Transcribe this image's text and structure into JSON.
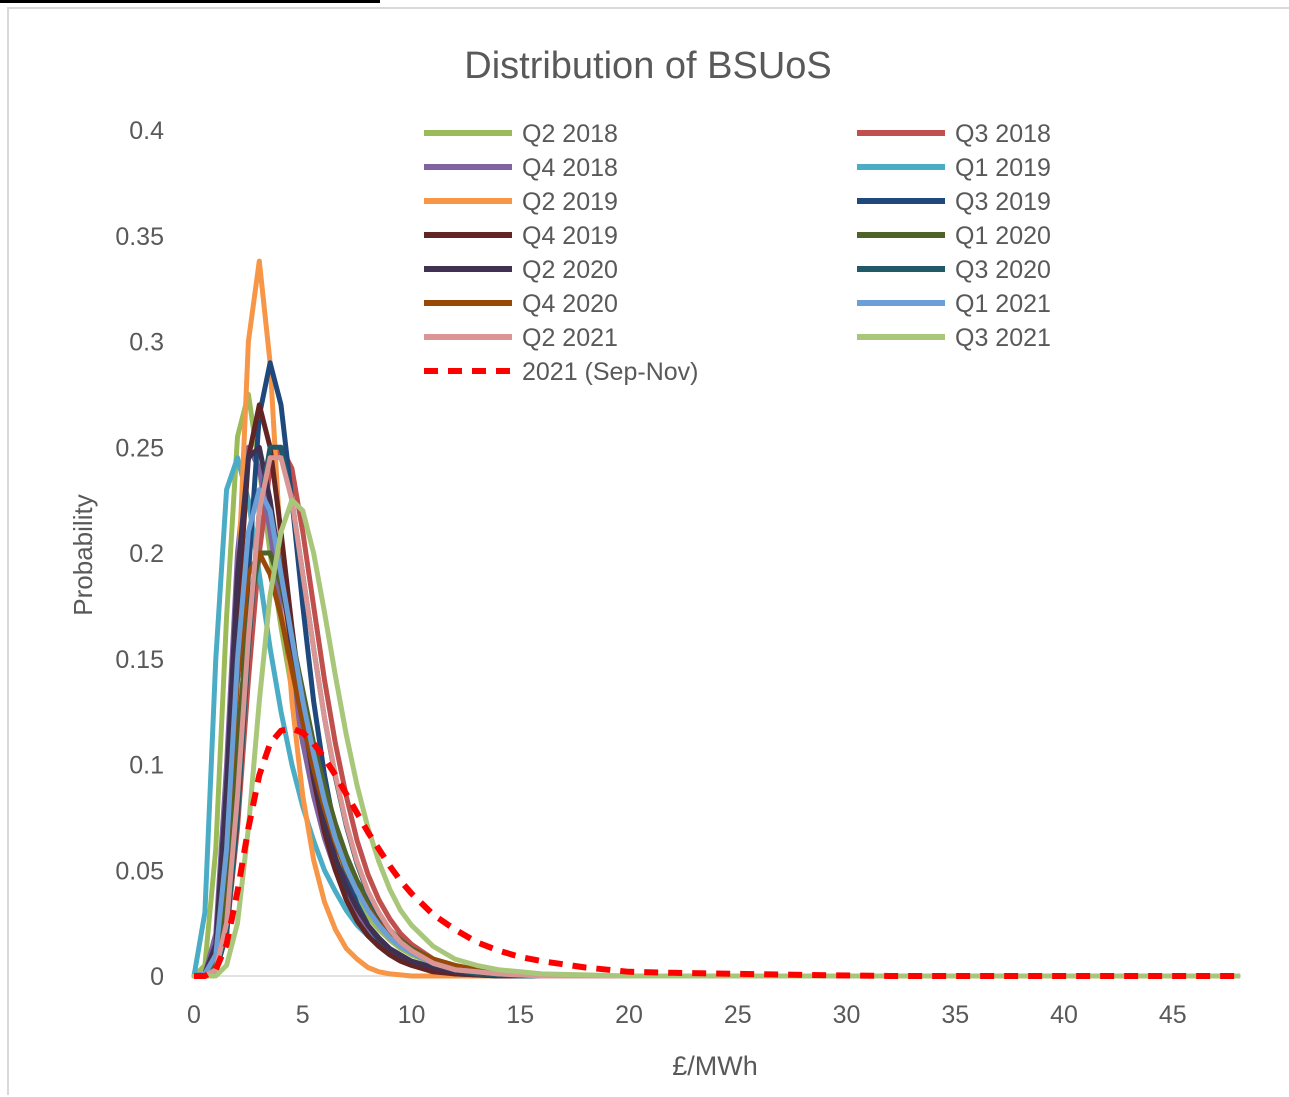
{
  "chart_data": {
    "type": "line",
    "title": "Distribution of BSUoS",
    "xlabel": "£/MWh",
    "ylabel": "Probability",
    "xlim": [
      0,
      48
    ],
    "ylim": [
      0,
      0.4
    ],
    "x_ticks": [
      0,
      5,
      10,
      15,
      20,
      25,
      30,
      35,
      40,
      45
    ],
    "y_ticks": [
      0,
      0.05,
      0.1,
      0.15,
      0.2,
      0.25,
      0.3,
      0.35,
      0.4
    ],
    "y_tick_labels": [
      "0",
      "0.05",
      "0.1",
      "0.15",
      "0.2",
      "0.25",
      "0.3",
      "0.35",
      "0.4"
    ],
    "x_tick_labels": [
      "0",
      "5",
      "10",
      "15",
      "20",
      "25",
      "30",
      "35",
      "40",
      "45"
    ],
    "grid": false,
    "legend_position": "top-right",
    "x": [
      0,
      0.5,
      1,
      1.5,
      2,
      2.5,
      3,
      3.5,
      4,
      4.5,
      5,
      5.5,
      6,
      6.5,
      7,
      7.5,
      8,
      8.5,
      9,
      9.5,
      10,
      11,
      12,
      13,
      14,
      15,
      16,
      18,
      20,
      22,
      25,
      28,
      32,
      36,
      40,
      44,
      48
    ],
    "series": [
      {
        "name": "Q2 2018",
        "color": "#9bbb59",
        "dashed": false,
        "values": [
          0,
          0.005,
          0.06,
          0.17,
          0.255,
          0.275,
          0.24,
          0.2,
          0.165,
          0.135,
          0.11,
          0.09,
          0.072,
          0.058,
          0.046,
          0.036,
          0.028,
          0.022,
          0.017,
          0.013,
          0.01,
          0.006,
          0.003,
          0.002,
          0.001,
          0.0005,
          0,
          0,
          0,
          0,
          0,
          0,
          0,
          0,
          0,
          0,
          0
        ]
      },
      {
        "name": "Q3 2018",
        "color": "#c0504d",
        "dashed": false,
        "values": [
          0,
          0,
          0.003,
          0.02,
          0.07,
          0.14,
          0.2,
          0.24,
          0.25,
          0.24,
          0.21,
          0.175,
          0.14,
          0.11,
          0.085,
          0.064,
          0.048,
          0.036,
          0.027,
          0.02,
          0.015,
          0.008,
          0.004,
          0.002,
          0.001,
          0.0005,
          0,
          0,
          0,
          0,
          0,
          0,
          0,
          0,
          0,
          0,
          0
        ]
      },
      {
        "name": "Q4 2018",
        "color": "#8064a2",
        "dashed": false,
        "values": [
          0,
          0.001,
          0.02,
          0.1,
          0.2,
          0.25,
          0.24,
          0.21,
          0.175,
          0.14,
          0.11,
          0.085,
          0.065,
          0.05,
          0.038,
          0.028,
          0.021,
          0.016,
          0.012,
          0.009,
          0.007,
          0.004,
          0.002,
          0.001,
          0.0005,
          0,
          0,
          0,
          0,
          0,
          0,
          0,
          0,
          0,
          0,
          0,
          0
        ]
      },
      {
        "name": "Q1 2019",
        "color": "#4bacc6",
        "dashed": false,
        "values": [
          0,
          0.03,
          0.15,
          0.23,
          0.245,
          0.225,
          0.19,
          0.155,
          0.125,
          0.1,
          0.08,
          0.064,
          0.05,
          0.04,
          0.031,
          0.024,
          0.019,
          0.015,
          0.011,
          0.009,
          0.007,
          0.004,
          0.002,
          0.001,
          0.0005,
          0,
          0,
          0,
          0,
          0,
          0,
          0,
          0,
          0,
          0,
          0,
          0
        ]
      },
      {
        "name": "Q2 2019",
        "color": "#f79646",
        "dashed": false,
        "values": [
          0,
          0,
          0.005,
          0.05,
          0.18,
          0.3,
          0.338,
          0.29,
          0.2,
          0.13,
          0.085,
          0.055,
          0.035,
          0.022,
          0.013,
          0.008,
          0.004,
          0.002,
          0.001,
          0.0005,
          0,
          0,
          0,
          0,
          0,
          0,
          0,
          0,
          0,
          0,
          0,
          0,
          0,
          0,
          0,
          0,
          0
        ]
      },
      {
        "name": "Q3 2019",
        "color": "#1f497d",
        "dashed": false,
        "values": [
          0,
          0,
          0.002,
          0.02,
          0.09,
          0.19,
          0.265,
          0.29,
          0.27,
          0.225,
          0.175,
          0.13,
          0.095,
          0.068,
          0.048,
          0.034,
          0.024,
          0.017,
          0.012,
          0.008,
          0.006,
          0.003,
          0.001,
          0.0005,
          0,
          0,
          0,
          0,
          0,
          0,
          0,
          0,
          0,
          0,
          0,
          0,
          0
        ]
      },
      {
        "name": "Q4 2019",
        "color": "#632523",
        "dashed": false,
        "values": [
          0,
          0.001,
          0.01,
          0.07,
          0.17,
          0.245,
          0.27,
          0.25,
          0.21,
          0.165,
          0.125,
          0.093,
          0.068,
          0.05,
          0.036,
          0.026,
          0.019,
          0.014,
          0.01,
          0.007,
          0.005,
          0.002,
          0.001,
          0.0005,
          0,
          0,
          0,
          0,
          0,
          0,
          0,
          0,
          0,
          0,
          0,
          0,
          0
        ]
      },
      {
        "name": "Q1 2020",
        "color": "#4f6228",
        "dashed": false,
        "values": [
          0,
          0,
          0.005,
          0.04,
          0.11,
          0.17,
          0.2,
          0.2,
          0.185,
          0.16,
          0.135,
          0.11,
          0.09,
          0.072,
          0.057,
          0.045,
          0.036,
          0.028,
          0.022,
          0.017,
          0.013,
          0.008,
          0.005,
          0.003,
          0.002,
          0.001,
          0.0005,
          0,
          0,
          0,
          0,
          0,
          0,
          0,
          0,
          0,
          0
        ]
      },
      {
        "name": "Q2 2020",
        "color": "#403152",
        "dashed": false,
        "values": [
          0,
          0.001,
          0.015,
          0.09,
          0.19,
          0.245,
          0.25,
          0.225,
          0.19,
          0.155,
          0.122,
          0.095,
          0.073,
          0.056,
          0.042,
          0.032,
          0.024,
          0.018,
          0.013,
          0.01,
          0.007,
          0.004,
          0.002,
          0.001,
          0.0005,
          0,
          0,
          0,
          0,
          0,
          0,
          0,
          0,
          0,
          0,
          0,
          0
        ]
      },
      {
        "name": "Q3 2020",
        "color": "#215968",
        "dashed": false,
        "values": [
          0,
          0,
          0.002,
          0.02,
          0.075,
          0.155,
          0.22,
          0.25,
          0.25,
          0.225,
          0.19,
          0.155,
          0.122,
          0.094,
          0.071,
          0.053,
          0.039,
          0.029,
          0.021,
          0.015,
          0.011,
          0.006,
          0.003,
          0.001,
          0.0005,
          0,
          0,
          0,
          0,
          0,
          0,
          0,
          0,
          0,
          0,
          0,
          0
        ]
      },
      {
        "name": "Q4 2020",
        "color": "#984807",
        "dashed": false,
        "values": [
          0,
          0.001,
          0.01,
          0.06,
          0.14,
          0.19,
          0.2,
          0.19,
          0.17,
          0.145,
          0.12,
          0.098,
          0.079,
          0.063,
          0.05,
          0.04,
          0.032,
          0.025,
          0.02,
          0.016,
          0.012,
          0.008,
          0.005,
          0.003,
          0.002,
          0.001,
          0.0005,
          0,
          0,
          0,
          0,
          0,
          0,
          0,
          0,
          0,
          0
        ]
      },
      {
        "name": "Q1 2021",
        "color": "#6a9fd8",
        "dashed": false,
        "values": [
          0,
          0.001,
          0.01,
          0.06,
          0.15,
          0.21,
          0.23,
          0.22,
          0.19,
          0.16,
          0.13,
          0.105,
          0.083,
          0.065,
          0.051,
          0.04,
          0.031,
          0.024,
          0.018,
          0.014,
          0.011,
          0.006,
          0.003,
          0.002,
          0.001,
          0.0005,
          0,
          0,
          0,
          0,
          0,
          0,
          0,
          0,
          0,
          0,
          0
        ]
      },
      {
        "name": "Q2 2021",
        "color": "#d99694",
        "dashed": false,
        "values": [
          0,
          0,
          0.003,
          0.025,
          0.085,
          0.16,
          0.22,
          0.245,
          0.245,
          0.225,
          0.19,
          0.155,
          0.122,
          0.095,
          0.072,
          0.054,
          0.04,
          0.03,
          0.022,
          0.016,
          0.012,
          0.006,
          0.003,
          0.002,
          0.001,
          0.0005,
          0,
          0,
          0,
          0,
          0,
          0,
          0,
          0,
          0,
          0,
          0
        ]
      },
      {
        "name": "Q3 2021",
        "color": "#a9c77a",
        "dashed": false,
        "values": [
          0,
          0,
          0,
          0.005,
          0.025,
          0.07,
          0.13,
          0.18,
          0.21,
          0.225,
          0.22,
          0.2,
          0.172,
          0.142,
          0.114,
          0.09,
          0.07,
          0.054,
          0.041,
          0.031,
          0.024,
          0.014,
          0.008,
          0.005,
          0.003,
          0.002,
          0.001,
          0.0005,
          0,
          0,
          0,
          0,
          0,
          0,
          0,
          0,
          0
        ]
      },
      {
        "name": "2021 (Sep-Nov)",
        "color": "#ff0000",
        "dashed": true,
        "values": [
          0,
          0,
          0.003,
          0.015,
          0.04,
          0.07,
          0.095,
          0.11,
          0.116,
          0.117,
          0.115,
          0.11,
          0.103,
          0.095,
          0.086,
          0.077,
          0.068,
          0.06,
          0.052,
          0.045,
          0.039,
          0.029,
          0.022,
          0.016,
          0.012,
          0.009,
          0.007,
          0.004,
          0.002,
          0.0015,
          0.001,
          0.0005,
          0,
          0,
          0,
          0,
          0
        ]
      }
    ]
  }
}
